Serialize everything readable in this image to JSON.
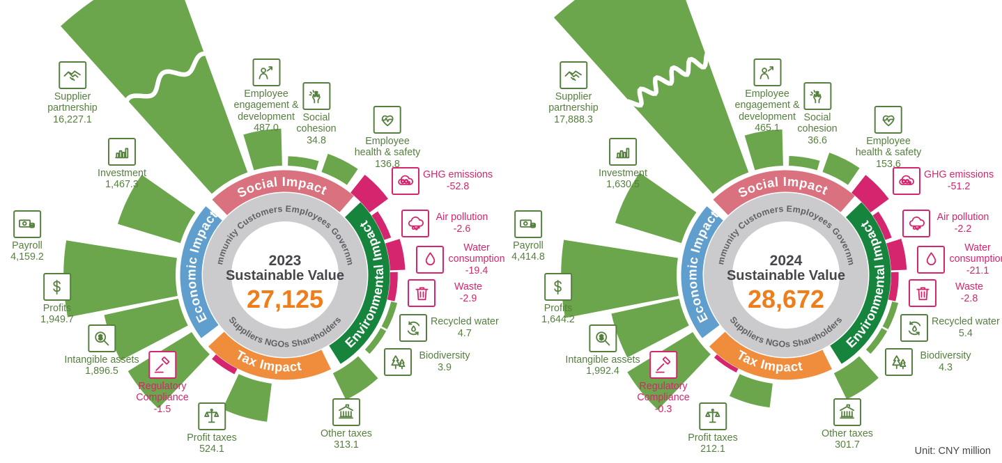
{
  "page": {
    "unit_label": "Unit: CNY million"
  },
  "colors": {
    "wedge_green": "#6ba64c",
    "negative_pink": "#d5256e",
    "social": "#d9717f",
    "environmental": "#17843d",
    "tax": "#ef8d3c",
    "economic": "#5f9ecd",
    "ring_gray": "#cbcbcd",
    "stakeholder_text": "#5f6065",
    "center_text": "#46474b",
    "total_orange": "#ee7e1b",
    "label_green": "#557f3e"
  },
  "chart_data": [
    {
      "type": "radial-rose",
      "year": "2023",
      "center_label": "Sustainable Value",
      "total_display": "27,125",
      "total_value": 27125,
      "unit": "CNY million",
      "segments": [
        "Social Impact",
        "Environmental Impact",
        "Tax Impact",
        "Economic Impact"
      ],
      "stakeholders_top": [
        "Community",
        "Customers",
        "Employees",
        "Government"
      ],
      "stakeholders_bottom": [
        "Suppliers",
        "NGOs",
        "Shareholders"
      ],
      "metrics": [
        {
          "id": "supplier-partnership",
          "segment": "Economic Impact",
          "label": "Supplier partnership",
          "lines": [
            "Supplier",
            "partnership"
          ],
          "value": 16227.1,
          "display": "16,227.1"
        },
        {
          "id": "investment",
          "segment": "Economic Impact",
          "label": "Investment",
          "lines": [
            "Investment"
          ],
          "value": 1467.3,
          "display": "1,467.3"
        },
        {
          "id": "payroll",
          "segment": "Economic Impact",
          "label": "Payroll",
          "lines": [
            "Payroll"
          ],
          "value": 4159.2,
          "display": "4,159.2"
        },
        {
          "id": "profits",
          "segment": "Economic Impact",
          "label": "Profits",
          "lines": [
            "Profits"
          ],
          "value": 1949.7,
          "display": "1,949.7"
        },
        {
          "id": "intangible-assets",
          "segment": "Economic Impact",
          "label": "Intangible assets",
          "lines": [
            "Intangible assets"
          ],
          "value": 1896.5,
          "display": "1,896.5"
        },
        {
          "id": "regulatory-compliance",
          "segment": "Economic Impact",
          "label": "Regulatory Compliance",
          "lines": [
            "Regulatory",
            "Compliance"
          ],
          "value": -1.5,
          "display": "-1.5"
        },
        {
          "id": "profit-taxes",
          "segment": "Tax Impact",
          "label": "Profit taxes",
          "lines": [
            "Profit taxes"
          ],
          "value": 524.1,
          "display": "524.1"
        },
        {
          "id": "other-taxes",
          "segment": "Tax Impact",
          "label": "Other taxes",
          "lines": [
            "Other taxes"
          ],
          "value": 313.1,
          "display": "313.1"
        },
        {
          "id": "biodiversity",
          "segment": "Environmental Impact",
          "label": "Biodiversity",
          "lines": [
            "Biodiversity"
          ],
          "value": 3.9,
          "display": "3.9"
        },
        {
          "id": "recycled-water",
          "segment": "Environmental Impact",
          "label": "Recycled water",
          "lines": [
            "Recycled water"
          ],
          "value": 4.7,
          "display": "4.7"
        },
        {
          "id": "waste",
          "segment": "Environmental Impact",
          "label": "Waste",
          "lines": [
            "Waste"
          ],
          "value": -2.9,
          "display": "-2.9"
        },
        {
          "id": "water-consumption",
          "segment": "Environmental Impact",
          "label": "Water consumption",
          "lines": [
            "Water",
            "consumption"
          ],
          "value": -19.4,
          "display": "-19.4"
        },
        {
          "id": "air-pollution",
          "segment": "Environmental Impact",
          "label": "Air pollution",
          "lines": [
            "Air pollution"
          ],
          "value": -2.6,
          "display": "-2.6"
        },
        {
          "id": "ghg-emissions",
          "segment": "Environmental Impact",
          "label": "GHG emissions",
          "lines": [
            "GHG emissions"
          ],
          "value": -52.8,
          "display": "-52.8"
        },
        {
          "id": "employee-health",
          "segment": "Social Impact",
          "label": "Employee health & safety",
          "lines": [
            "Employee",
            "health & safety"
          ],
          "value": 136.8,
          "display": "136.8"
        },
        {
          "id": "social-cohesion",
          "segment": "Social Impact",
          "label": "Social cohesion",
          "lines": [
            "Social",
            "cohesion"
          ],
          "value": 34.8,
          "display": "34.8"
        },
        {
          "id": "employee-engagement",
          "segment": "Social Impact",
          "label": "Employee engagement & development",
          "lines": [
            "Employee",
            "engagement &",
            "development"
          ],
          "value": 487.0,
          "display": "487.0"
        }
      ]
    },
    {
      "type": "radial-rose",
      "year": "2024",
      "center_label": "Sustainable Value",
      "total_display": "28,672",
      "total_value": 28672,
      "unit": "CNY million",
      "segments": [
        "Social Impact",
        "Environmental Impact",
        "Tax Impact",
        "Economic Impact"
      ],
      "stakeholders_top": [
        "Community",
        "Customers",
        "Employees",
        "Government"
      ],
      "stakeholders_bottom": [
        "Suppliers",
        "NGOs",
        "Shareholders"
      ],
      "metrics": [
        {
          "id": "supplier-partnership",
          "segment": "Economic Impact",
          "label": "Supplier partnership",
          "lines": [
            "Supplier",
            "partnership"
          ],
          "value": 17888.3,
          "display": "17,888.3"
        },
        {
          "id": "investment",
          "segment": "Economic Impact",
          "label": "Investment",
          "lines": [
            "Investment"
          ],
          "value": 1630.5,
          "display": "1,630.5"
        },
        {
          "id": "payroll",
          "segment": "Economic Impact",
          "label": "Payroll",
          "lines": [
            "Payroll"
          ],
          "value": 4414.8,
          "display": "4,414.8"
        },
        {
          "id": "profits",
          "segment": "Economic Impact",
          "label": "Profits",
          "lines": [
            "Profits"
          ],
          "value": 1644.2,
          "display": "1,644.2"
        },
        {
          "id": "intangible-assets",
          "segment": "Economic Impact",
          "label": "Intangible assets",
          "lines": [
            "Intangible assets"
          ],
          "value": 1992.4,
          "display": "1,992.4"
        },
        {
          "id": "regulatory-compliance",
          "segment": "Economic Impact",
          "label": "Regulatory Compliance",
          "lines": [
            "Regulatory",
            "Compliance"
          ],
          "value": -0.3,
          "display": "-0.3"
        },
        {
          "id": "profit-taxes",
          "segment": "Tax Impact",
          "label": "Profit taxes",
          "lines": [
            "Profit taxes"
          ],
          "value": 212.1,
          "display": "212.1"
        },
        {
          "id": "other-taxes",
          "segment": "Tax Impact",
          "label": "Other taxes",
          "lines": [
            "Other taxes"
          ],
          "value": 301.7,
          "display": "301.7"
        },
        {
          "id": "biodiversity",
          "segment": "Environmental Impact",
          "label": "Biodiversity",
          "lines": [
            "Biodiversity"
          ],
          "value": 4.3,
          "display": "4.3"
        },
        {
          "id": "recycled-water",
          "segment": "Environmental Impact",
          "label": "Recycled water",
          "lines": [
            "Recycled water"
          ],
          "value": 5.4,
          "display": "5.4"
        },
        {
          "id": "waste",
          "segment": "Environmental Impact",
          "label": "Waste",
          "lines": [
            "Waste"
          ],
          "value": -2.8,
          "display": "-2.8"
        },
        {
          "id": "water-consumption",
          "segment": "Environmental Impact",
          "label": "Water consumption",
          "lines": [
            "Water",
            "consumption"
          ],
          "value": -21.1,
          "display": "-21.1"
        },
        {
          "id": "air-pollution",
          "segment": "Environmental Impact",
          "label": "Air pollution",
          "lines": [
            "Air pollution"
          ],
          "value": -2.2,
          "display": "-2.2"
        },
        {
          "id": "ghg-emissions",
          "segment": "Environmental Impact",
          "label": "GHG emissions",
          "lines": [
            "GHG emissions"
          ],
          "value": -51.2,
          "display": "-51.2"
        },
        {
          "id": "employee-health",
          "segment": "Social Impact",
          "label": "Employee health & safety",
          "lines": [
            "Employee",
            "health & safety"
          ],
          "value": 153.6,
          "display": "153.6"
        },
        {
          "id": "social-cohesion",
          "segment": "Social Impact",
          "label": "Social cohesion",
          "lines": [
            "Social",
            "cohesion"
          ],
          "value": 36.6,
          "display": "36.6"
        },
        {
          "id": "employee-engagement",
          "segment": "Social Impact",
          "label": "Employee engagement & development",
          "lines": [
            "Employee",
            "engagement &",
            "development"
          ],
          "value": 465.1,
          "display": "465.1"
        }
      ]
    }
  ]
}
